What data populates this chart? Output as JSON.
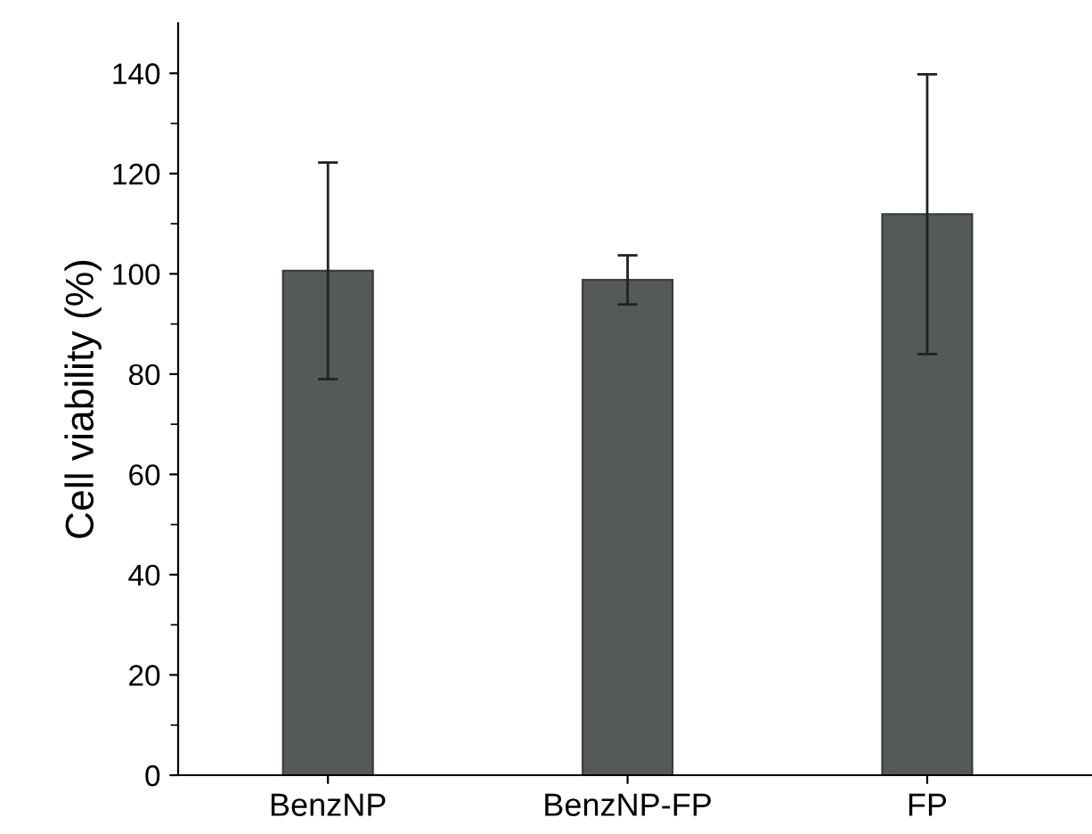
{
  "chart_data": {
    "type": "bar",
    "ylabel": "Cell viability (%)",
    "categories": [
      "BenzNP",
      "BenzNP-FP",
      "FP"
    ],
    "values": [
      100.6,
      98.8,
      111.9
    ],
    "errors": [
      [
        79.0,
        122.2
      ],
      [
        93.9,
        103.7
      ],
      [
        84.0,
        139.8
      ]
    ],
    "color": "#555a56",
    "ylim": [
      0,
      150
    ],
    "yticks": [
      0,
      20,
      40,
      60,
      80,
      100,
      120,
      140
    ],
    "grid": false
  }
}
